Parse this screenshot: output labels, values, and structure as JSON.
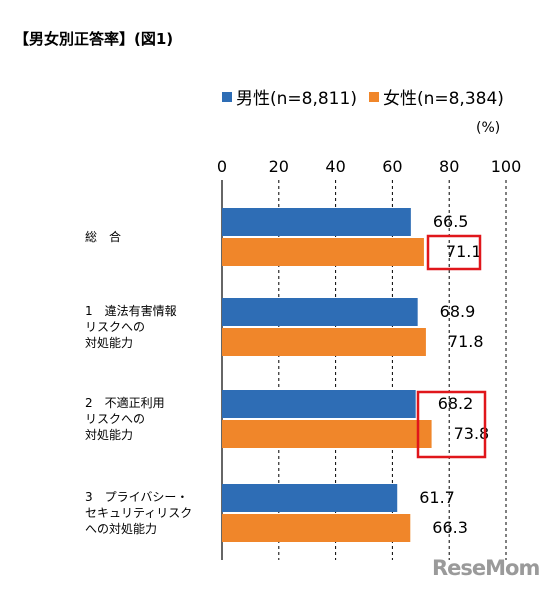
{
  "title": "【男女別正答率】(図1)",
  "unit": "(%)",
  "watermark": "ReseMom",
  "colors": {
    "male": "#2e6db5",
    "female": "#f0862a",
    "highlight": "#e0161b",
    "grid": "#000000"
  },
  "chart_data": {
    "type": "bar",
    "orientation": "horizontal",
    "xlim": [
      0,
      100
    ],
    "xticks": [
      "0",
      "20",
      "40",
      "60",
      "80",
      "100"
    ],
    "categories": [
      [
        "総　合"
      ],
      [
        "1　違法有害情報",
        "リスクへの",
        "対処能力"
      ],
      [
        "2　不適正利用",
        "リスクへの",
        "対処能力"
      ],
      [
        "3　プライバシー・",
        "セキュリティリスク",
        "への対処能力"
      ]
    ],
    "series": [
      {
        "name": "男性(n=8,811)",
        "values": [
          66.5,
          68.9,
          68.2,
          61.7
        ],
        "labels": [
          "66.5",
          "68.9",
          "68.2",
          "61.7"
        ]
      },
      {
        "name": "女性(n=8,384)",
        "values": [
          71.1,
          71.8,
          73.8,
          66.3
        ],
        "labels": [
          "71.1",
          "71.8",
          "73.8",
          "66.3"
        ]
      }
    ],
    "legend_position": "top",
    "highlighted": [
      "female-0",
      "group-2"
    ]
  }
}
